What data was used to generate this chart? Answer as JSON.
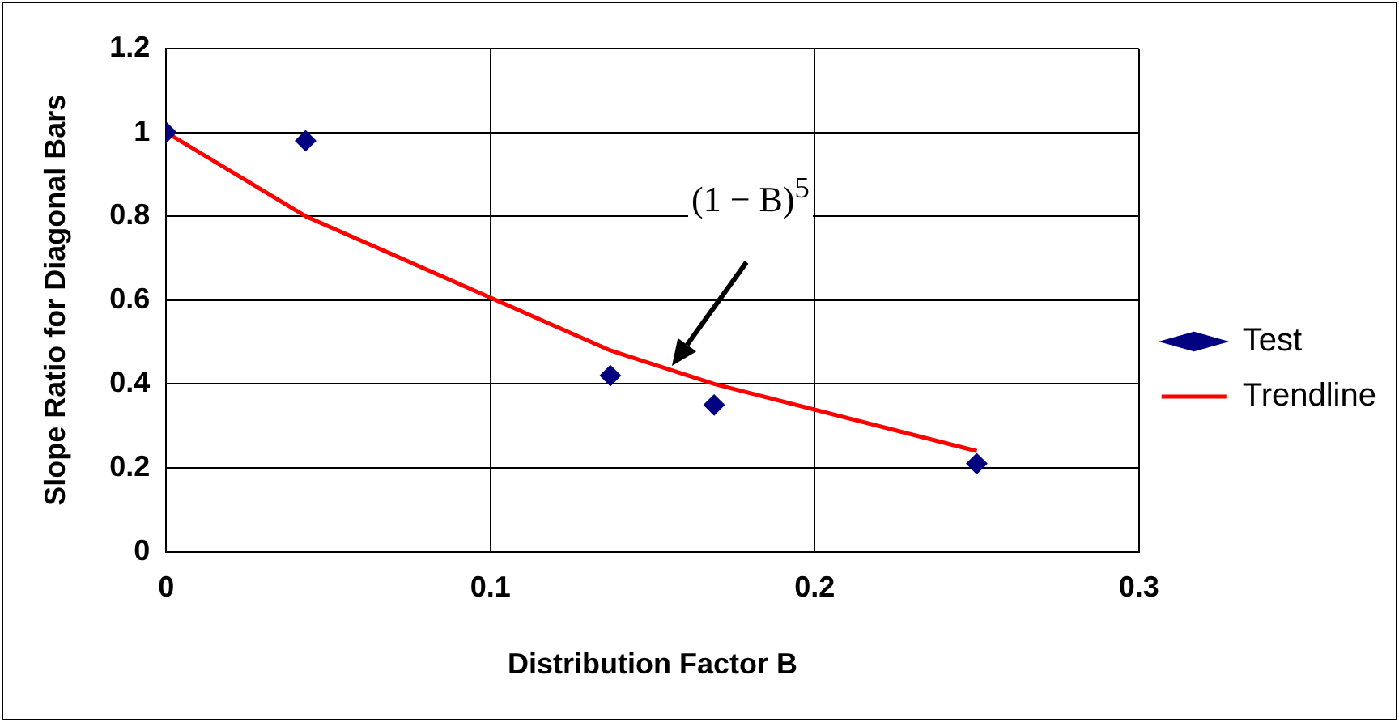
{
  "chart_data": {
    "type": "scatter",
    "xlabel": "Distribution Factor B",
    "ylabel": "Slope Ratio for Diagonal Bars",
    "series": [
      {
        "name": "Test",
        "color": "#000080",
        "marker": "diamond",
        "x": [
          0,
          0.043,
          0.137,
          0.169,
          0.25
        ],
        "values": [
          1.0,
          0.98,
          0.42,
          0.35,
          0.21
        ]
      },
      {
        "name": "Trendline",
        "type": "line",
        "color": "#ff0000",
        "marker": "none",
        "x": [
          0,
          0.043,
          0.137,
          0.169,
          0.25
        ],
        "values": [
          1.0,
          0.8,
          0.48,
          0.4,
          0.24
        ]
      }
    ],
    "xlim": [
      0,
      0.3
    ],
    "xticks": [
      0,
      0.1,
      0.2,
      0.3
    ],
    "ylim": [
      0,
      1.2
    ],
    "yticks": [
      0,
      0.2,
      0.4,
      0.6,
      0.8,
      1,
      1.2
    ],
    "grid": true,
    "legend": "right",
    "line_style": "solid",
    "annotations": [
      "(1 − B)$^{5}$"
    ]
  }
}
